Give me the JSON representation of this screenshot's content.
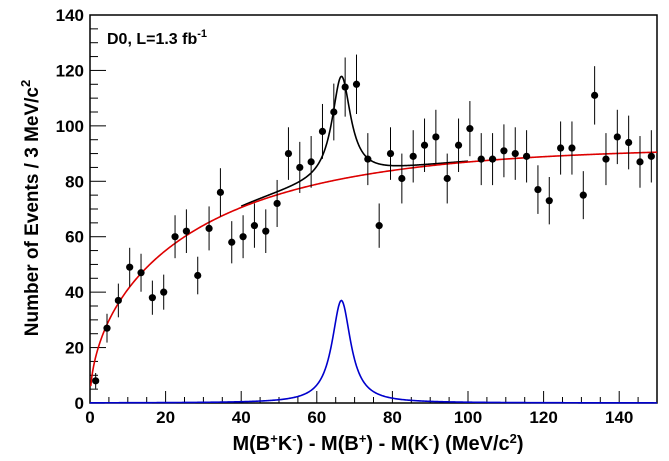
{
  "chart_data": {
    "type": "scatter",
    "annotation": {
      "main": "D0, L=1.3 fb",
      "sup": "-1"
    },
    "ylabel": {
      "main": "Number of Events / 3 MeV/c",
      "sup": "2"
    },
    "xlabel": [
      {
        "t": "M(B"
      },
      {
        "t": "+",
        "sup": true
      },
      {
        "t": "K"
      },
      {
        "t": "-",
        "sup": true
      },
      {
        "t": ") - M(B"
      },
      {
        "t": "+",
        "sup": true
      },
      {
        "t": ") - M(K"
      },
      {
        "t": "-",
        "sup": true
      },
      {
        "t": ")    (MeV/c"
      },
      {
        "t": "2",
        "sup": true
      },
      {
        "t": ")"
      }
    ],
    "xlim": [
      0,
      150
    ],
    "ylim": [
      0,
      140
    ],
    "xticks": [
      0,
      20,
      40,
      60,
      80,
      100,
      120,
      140
    ],
    "yticks": [
      0,
      20,
      40,
      60,
      80,
      100,
      120,
      140
    ],
    "x_tick_labels": [
      "0",
      "20",
      "40",
      "60",
      "80",
      "100",
      "120",
      "140"
    ],
    "y_tick_labels": [
      "0",
      "20",
      "40",
      "60",
      "80",
      "100",
      "120",
      "140"
    ],
    "grid": false,
    "colors": {
      "points": "#000000",
      "total_fit": "#000000",
      "background_fit": "#dd0000",
      "signal_fit": "#0000cc"
    },
    "data_points": {
      "x": [
        1.5,
        4.5,
        7.5,
        10.5,
        13.5,
        16.5,
        19.5,
        22.5,
        25.5,
        28.5,
        31.5,
        34.5,
        37.5,
        40.5,
        43.5,
        46.5,
        49.5,
        52.5,
        55.5,
        58.5,
        61.5,
        64.5,
        67.5,
        70.5,
        73.5,
        76.5,
        79.5,
        82.5,
        85.5,
        88.5,
        91.5,
        94.5,
        97.5,
        100.5,
        103.5,
        106.5,
        109.5,
        112.5,
        115.5,
        118.5,
        121.5,
        124.5,
        127.5,
        130.5,
        133.5,
        136.5,
        139.5,
        142.5,
        145.5,
        148.5
      ],
      "y": [
        8,
        27,
        37,
        49,
        47,
        38,
        40,
        60,
        62,
        46,
        63,
        76,
        58,
        60,
        64,
        62,
        72,
        90,
        85,
        87,
        98,
        105,
        114,
        115,
        88,
        64,
        90,
        81,
        89,
        93,
        96,
        81,
        93,
        99,
        88,
        88,
        91,
        90,
        89,
        77,
        73,
        92,
        92,
        75,
        111,
        88,
        96,
        94,
        87,
        89
      ]
    },
    "signal": {
      "mass": 66.5,
      "width": 6,
      "peak": 37
    },
    "background": {
      "end_value": 90.5,
      "shape_param": 3.3
    }
  }
}
